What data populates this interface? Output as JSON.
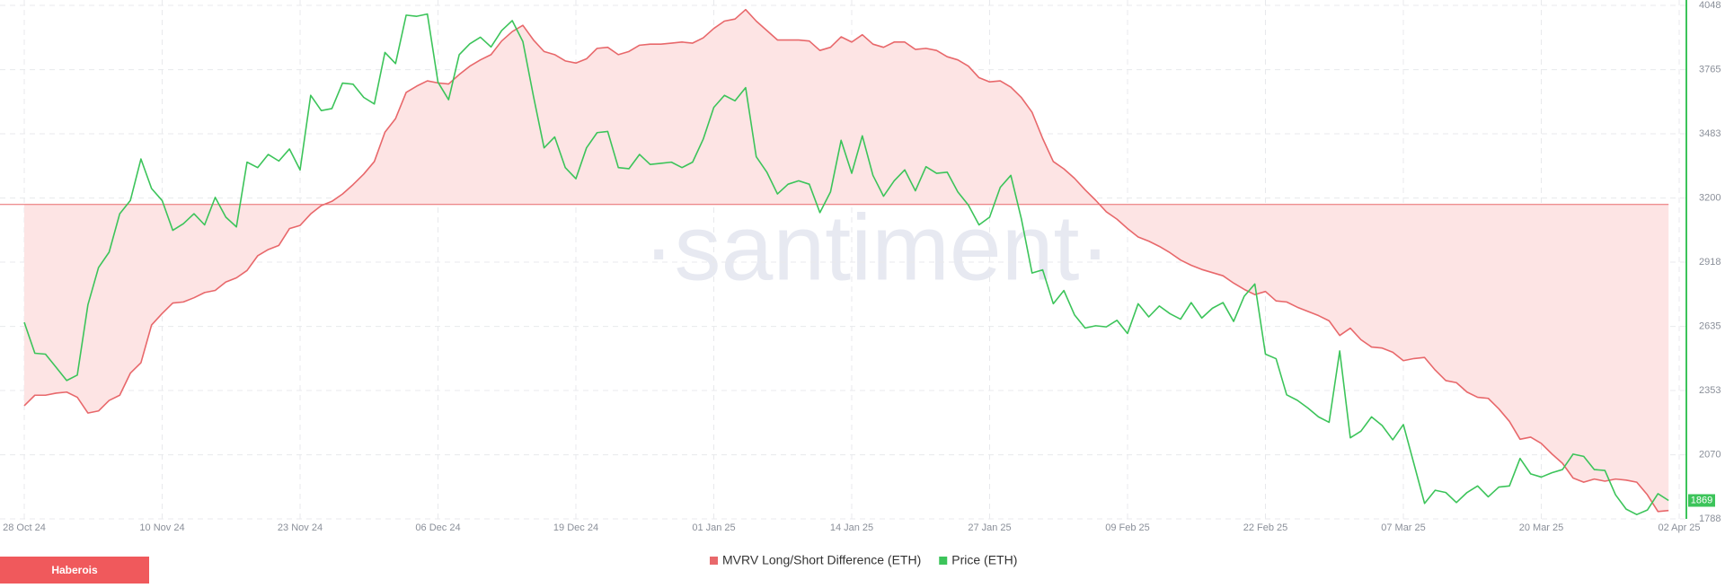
{
  "chart_data": {
    "type": "line",
    "categories": [
      "28 Oct 24",
      null,
      null,
      null,
      null,
      null,
      null,
      null,
      null,
      null,
      null,
      null,
      null,
      "10 Nov 24",
      null,
      null,
      null,
      null,
      null,
      null,
      null,
      null,
      null,
      null,
      null,
      null,
      "23 Nov 24",
      null,
      null,
      null,
      null,
      null,
      null,
      null,
      null,
      null,
      null,
      null,
      null,
      "06 Dec 24",
      null,
      null,
      null,
      null,
      null,
      null,
      null,
      null,
      null,
      null,
      null,
      null,
      "19 Dec 24",
      null,
      null,
      null,
      null,
      null,
      null,
      null,
      null,
      null,
      null,
      null,
      null,
      "01 Jan 25",
      null,
      null,
      null,
      null,
      null,
      null,
      null,
      null,
      null,
      null,
      null,
      null,
      "14 Jan 25",
      null,
      null,
      null,
      null,
      null,
      null,
      null,
      null,
      null,
      null,
      null,
      null,
      "27 Jan 25",
      null,
      null,
      null,
      null,
      null,
      null,
      null,
      null,
      null,
      null,
      null,
      null,
      "09 Feb 25",
      null,
      null,
      null,
      null,
      null,
      null,
      null,
      null,
      null,
      null,
      null,
      null,
      "22 Feb 25",
      null,
      null,
      null,
      null,
      null,
      null,
      null,
      null,
      null,
      null,
      null,
      null,
      "07 Mar 25",
      null,
      null,
      null,
      null,
      null,
      null,
      null,
      null,
      null,
      null,
      null,
      null,
      "20 Mar 25",
      null,
      null,
      null,
      null,
      null,
      null,
      null,
      null,
      null,
      null,
      null,
      null,
      "02 Apr 25"
    ],
    "series": [
      {
        "name": "MVRV Long/Short Difference (ETH)",
        "color": "#e8686b",
        "fill": "#fde4e4",
        "axis": "y",
        "values": [
          -19.2,
          -18.2,
          -18.2,
          -18.0,
          -17.9,
          -18.4,
          -19.9,
          -19.7,
          -18.7,
          -18.2,
          -16.1,
          -15.1,
          -11.5,
          -10.4,
          -9.4,
          -9.3,
          -8.9,
          -8.4,
          -8.2,
          -7.4,
          -7.0,
          -6.3,
          -4.9,
          -4.3,
          -3.9,
          -2.3,
          -2.0,
          -0.9,
          -0.1,
          0.3,
          1.0,
          1.9,
          2.9,
          4.1,
          6.9,
          8.2,
          10.7,
          11.3,
          11.8,
          11.6,
          11.5,
          12.4,
          13.2,
          13.8,
          14.3,
          15.6,
          16.5,
          17.1,
          15.7,
          14.6,
          14.3,
          13.7,
          13.5,
          13.9,
          14.9,
          15.0,
          14.3,
          14.6,
          15.2,
          15.3,
          15.3,
          15.4,
          15.5,
          15.4,
          15.9,
          16.8,
          17.5,
          17.7,
          18.6,
          17.5,
          16.6,
          15.7,
          15.7,
          15.7,
          15.6,
          14.7,
          15.0,
          16.0,
          15.5,
          16.2,
          15.3,
          15.0,
          15.5,
          15.5,
          14.8,
          14.9,
          14.7,
          14.1,
          13.8,
          13.2,
          12.1,
          11.7,
          11.8,
          11.2,
          10.2,
          8.8,
          6.3,
          4.1,
          3.4,
          2.5,
          1.4,
          0.4,
          -0.7,
          -1.4,
          -2.3,
          -3.1,
          -3.5,
          -4.0,
          -4.6,
          -5.3,
          -5.8,
          -6.2,
          -6.5,
          -6.8,
          -7.5,
          -8.1,
          -8.6,
          -8.3,
          -9.2,
          -9.3,
          -9.8,
          -10.2,
          -10.6,
          -11.1,
          -12.5,
          -11.8,
          -12.9,
          -13.6,
          -13.7,
          -14.1,
          -14.9,
          -14.7,
          -14.6,
          -15.8,
          -16.8,
          -17.0,
          -17.9,
          -18.4,
          -18.5,
          -19.5,
          -20.7,
          -22.4,
          -22.2,
          -22.8,
          -23.8,
          -24.7,
          -26.1,
          -26.5,
          -26.2,
          -26.4,
          -26.2,
          -26.3,
          -26.5,
          -27.7,
          -29.3,
          -29.2,
          null
        ]
      },
      {
        "name": "Price (ETH)",
        "color": "#3cc45a",
        "axis": "y2",
        "values": [
          2653,
          2517,
          2513,
          2455,
          2397,
          2421,
          2730,
          2894,
          2962,
          3131,
          3189,
          3372,
          3242,
          3189,
          3058,
          3087,
          3131,
          3082,
          3203,
          3116,
          3073,
          3358,
          3334,
          3392,
          3363,
          3416,
          3324,
          3652,
          3585,
          3594,
          3706,
          3701,
          3643,
          3614,
          3841,
          3792,
          4005,
          4000,
          4010,
          3710,
          3633,
          3831,
          3879,
          3908,
          3865,
          3937,
          3981,
          3889,
          3648,
          3421,
          3469,
          3334,
          3285,
          3421,
          3488,
          3493,
          3334,
          3329,
          3392,
          3348,
          3353,
          3358,
          3334,
          3358,
          3459,
          3599,
          3652,
          3628,
          3686,
          3382,
          3314,
          3218,
          3261,
          3276,
          3261,
          3136,
          3227,
          3454,
          3309,
          3474,
          3300,
          3208,
          3276,
          3324,
          3232,
          3338,
          3309,
          3314,
          3227,
          3169,
          3082,
          3116,
          3247,
          3300,
          3107,
          2870,
          2884,
          2735,
          2793,
          2686,
          2628,
          2638,
          2633,
          2662,
          2604,
          2735,
          2677,
          2725,
          2691,
          2667,
          2740,
          2672,
          2715,
          2740,
          2657,
          2768,
          2822,
          2513,
          2493,
          2334,
          2310,
          2276,
          2237,
          2213,
          2527,
          2145,
          2174,
          2237,
          2199,
          2136,
          2203,
          2030,
          1856,
          1914,
          1904,
          1860,
          1904,
          1933,
          1885,
          1928,
          1933,
          2054,
          1986,
          1972,
          1991,
          2005,
          2073,
          2063,
          2005,
          2001,
          1894,
          1831,
          1807,
          1827,
          1899,
          1869,
          null
        ]
      }
    ],
    "ylim": [
      -30,
      19
    ],
    "y2lim": [
      1788,
      4048
    ],
    "y2ticks": [
      1788,
      2070,
      2353,
      2635,
      2918,
      3200,
      3483,
      3765,
      4048
    ],
    "grid": true,
    "legend": "bottom"
  },
  "watermark": "·santiment·",
  "button": "Haberois"
}
